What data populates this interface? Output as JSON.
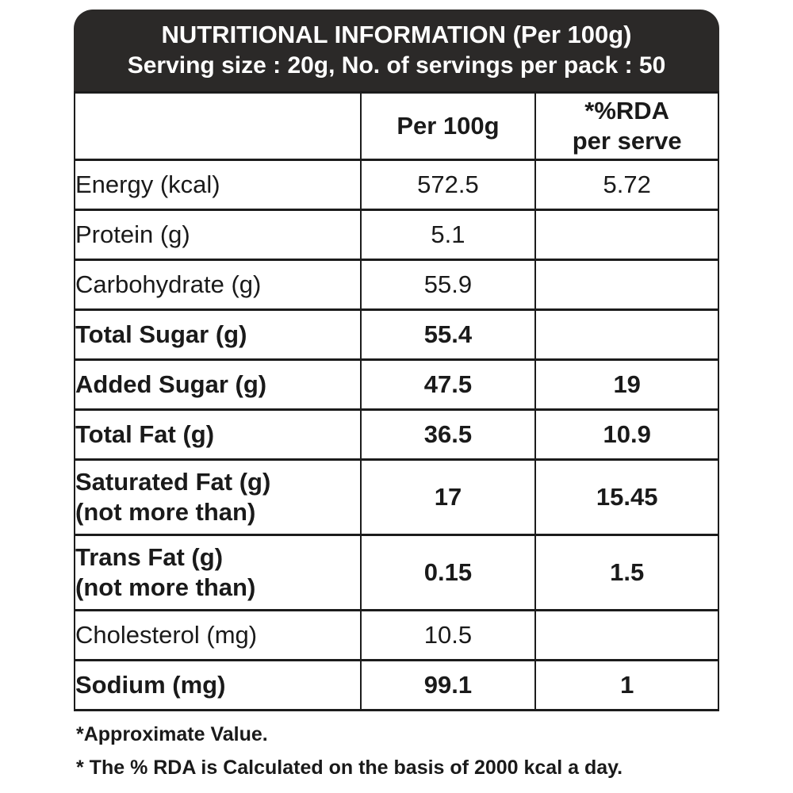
{
  "header": {
    "title": "NUTRITIONAL INFORMATION (Per 100g)",
    "subtitle": "Serving size : 20g, No. of servings per pack : 50"
  },
  "table": {
    "columns": {
      "label": "",
      "per100g": "Per 100g",
      "rda_line1": "*%RDA",
      "rda_line2": "per serve"
    },
    "rows": [
      {
        "label": "Energy (kcal)",
        "label2": "",
        "per100g": "572.5",
        "rda": "5.72",
        "bold": false
      },
      {
        "label": "Protein (g)",
        "label2": "",
        "per100g": "5.1",
        "rda": "",
        "bold": false
      },
      {
        "label": "Carbohydrate (g)",
        "label2": "",
        "per100g": "55.9",
        "rda": "",
        "bold": false
      },
      {
        "label": "Total Sugar (g)",
        "label2": "",
        "per100g": "55.4",
        "rda": "",
        "bold": true
      },
      {
        "label": "Added Sugar (g)",
        "label2": "",
        "per100g": "47.5",
        "rda": "19",
        "bold": true
      },
      {
        "label": "Total Fat (g)",
        "label2": "",
        "per100g": "36.5",
        "rda": "10.9",
        "bold": true
      },
      {
        "label": "Saturated Fat (g)",
        "label2": "(not more than)",
        "per100g": "17",
        "rda": "15.45",
        "bold": true
      },
      {
        "label": "Trans Fat (g)",
        "label2": "(not more than)",
        "per100g": "0.15",
        "rda": "1.5",
        "bold": true
      },
      {
        "label": "Cholesterol (mg)",
        "label2": "",
        "per100g": "10.5",
        "rda": "",
        "bold": false
      },
      {
        "label": "Sodium (mg)",
        "label2": "",
        "per100g": "99.1",
        "rda": "1",
        "bold": true
      }
    ]
  },
  "footnotes": [
    "*Approximate Value.",
    "* The % RDA is Calculated on the basis of 2000 kcal a day."
  ],
  "colors": {
    "header_bg": "#2b2928",
    "header_text": "#ffffff",
    "border": "#1c1c1c",
    "text": "#1a1a1a",
    "background": "#ffffff"
  }
}
